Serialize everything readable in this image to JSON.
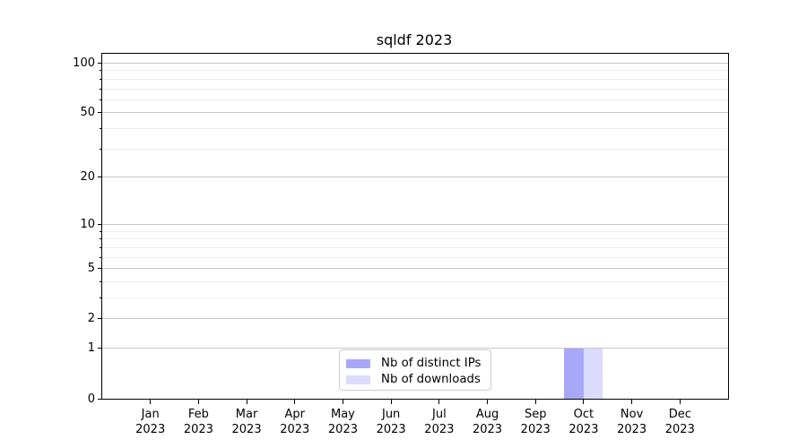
{
  "chart_data": {
    "type": "bar",
    "title": "sqldf 2023",
    "categories": [
      "Jan 2023",
      "Feb 2023",
      "Mar 2023",
      "Apr 2023",
      "May 2023",
      "Jun 2023",
      "Jul 2023",
      "Aug 2023",
      "Sep 2023",
      "Oct 2023",
      "Nov 2023",
      "Dec 2023"
    ],
    "series": [
      {
        "name": "Nb of distinct IPs",
        "color": "#a8a8f8",
        "values": [
          0,
          0,
          0,
          0,
          0,
          0,
          0,
          0,
          0,
          1,
          0,
          0
        ]
      },
      {
        "name": "Nb of downloads",
        "color": "#dbdbfb",
        "values": [
          0,
          0,
          0,
          0,
          0,
          0,
          0,
          0,
          0,
          1,
          0,
          0
        ]
      }
    ],
    "yscale": "log1p",
    "ylim": [
      0,
      114
    ],
    "yticks_major": [
      0,
      1,
      2,
      5,
      10,
      20,
      50,
      100
    ],
    "yticks_minor": [
      3,
      4,
      6,
      7,
      8,
      9,
      30,
      40,
      60,
      70,
      80,
      90
    ],
    "grid": "both",
    "legend_position": "lower center-left inside plot",
    "colors": {
      "major_grid": "#c6c6c6",
      "minor_grid": "#ededed",
      "spine": "#000000",
      "background": "#ffffff"
    }
  }
}
